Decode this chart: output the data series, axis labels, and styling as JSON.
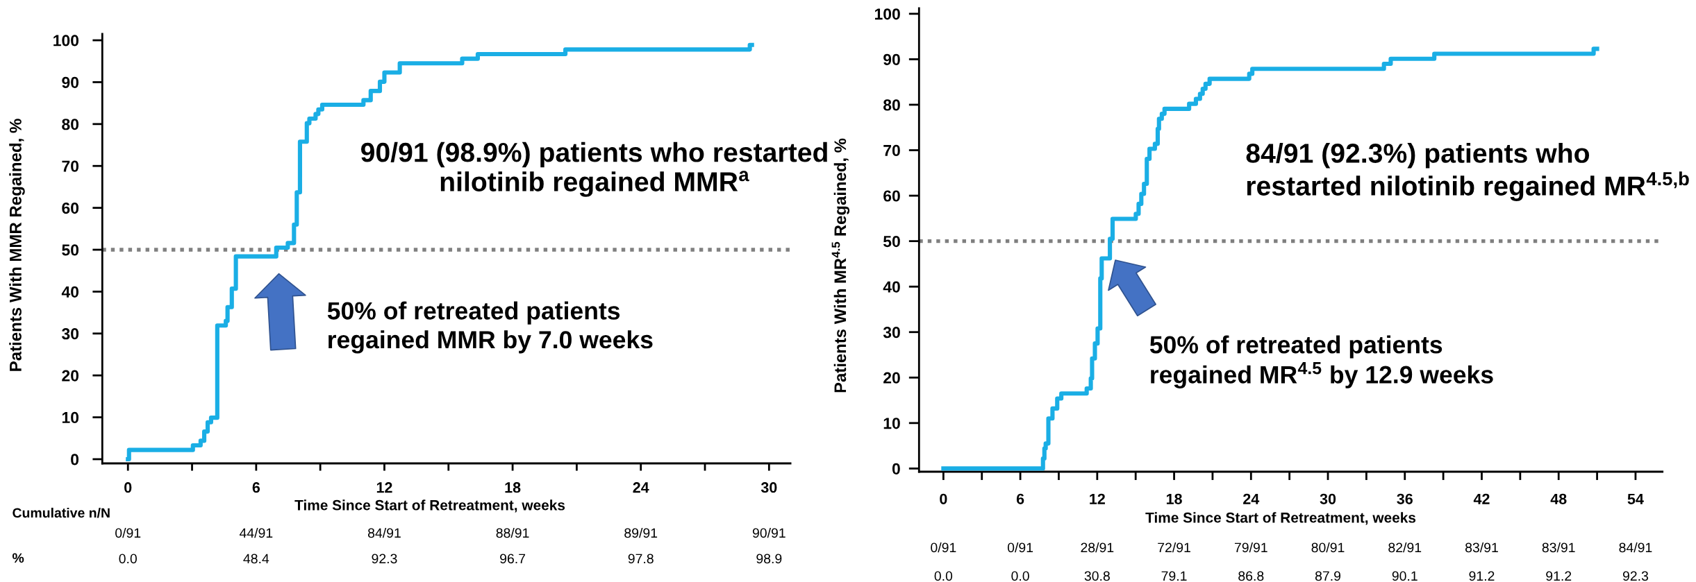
{
  "chart_data": [
    {
      "type": "step",
      "xlabel": "Time Since Start of Retreatment, weeks",
      "ylabel": "Patients With MMR Regained, %",
      "xlim": [
        -1.2,
        31.0
      ],
      "ylim": [
        -1,
        101.5
      ],
      "xticks": [
        0,
        {
          "value": 3,
          "label": null
        },
        6,
        {
          "value": 9,
          "label": null
        },
        12,
        {
          "value": 15,
          "label": null
        },
        18,
        {
          "value": 21,
          "label": null
        },
        24,
        {
          "value": 27,
          "label": null
        },
        30
      ],
      "yticks": [
        0,
        10,
        20,
        30,
        40,
        50,
        60,
        70,
        80,
        90,
        100
      ],
      "series": [
        {
          "color": "#1aaee5",
          "x": [
            0,
            0.05,
            3.04,
            3.4,
            3.57,
            3.73,
            3.89,
            4.18,
            4.58,
            4.66,
            4.86,
            5.05,
            6.94,
            7.48,
            7.77,
            7.9,
            8.05,
            8.37,
            8.49,
            8.78,
            8.91,
            9.09,
            11.02,
            11.36,
            11.79,
            12.0,
            12.72,
            15.64,
            16.37,
            20.47,
            29.1,
            29.2
          ],
          "values": [
            0,
            2.2,
            3.3,
            4.4,
            6.6,
            8.8,
            9.9,
            31.9,
            33.0,
            36.3,
            40.7,
            48.4,
            50.5,
            51.6,
            56.0,
            63.7,
            75.8,
            80.2,
            81.3,
            82.4,
            83.5,
            84.6,
            85.7,
            87.9,
            90.1,
            92.3,
            94.5,
            95.6,
            96.7,
            97.8,
            98.9,
            98.9
          ]
        }
      ],
      "ref_lines": [
        {
          "axis": "y",
          "value": 50,
          "color": "#808080",
          "line_style": "dotted"
        }
      ],
      "annotations": [
        "90/91 (98.9%) patients who restarted\nnilotinib regained MMR$^{a}$",
        {
          "text": "50% of retreated patients\nregained MMR by 7.0 weeks",
          "x": 7.0,
          "y": 50
        },
        "Cumulative n/N",
        "%",
        "0/91",
        "44/91",
        "84/91",
        "88/91",
        "89/91",
        "90/91",
        "0.0",
        "48.4",
        "92.3",
        "96.7",
        "97.8",
        "98.9"
      ]
    },
    {
      "type": "step",
      "xlabel": "Time Since Start of Retreatment, weeks",
      "ylabel": "Patients With MR$^{4.5}$ Regained, %",
      "xlim": [
        -1.9,
        56.1
      ],
      "ylim": [
        -0.7,
        101.2
      ],
      "xticks": [
        0,
        {
          "value": 3,
          "label": null
        },
        6,
        {
          "value": 9,
          "label": null
        },
        12,
        {
          "value": 15,
          "label": null
        },
        18,
        {
          "value": 21,
          "label": null
        },
        24,
        {
          "value": 27,
          "label": null
        },
        30,
        {
          "value": 33,
          "label": null
        },
        36,
        {
          "value": 39,
          "label": null
        },
        42,
        {
          "value": 45,
          "label": null
        },
        48,
        {
          "value": 51,
          "label": null
        },
        54
      ],
      "yticks": [
        0,
        10,
        20,
        30,
        40,
        50,
        60,
        70,
        80,
        90,
        100
      ],
      "series": [
        {
          "color": "#1aaee5",
          "x": [
            0,
            7.77,
            7.88,
            7.98,
            8.19,
            8.51,
            8.88,
            9.2,
            11.18,
            11.5,
            11.6,
            11.82,
            12.03,
            12.24,
            12.35,
            12.99,
            13.2,
            15.01,
            15.23,
            15.44,
            15.65,
            15.87,
            16.08,
            16.5,
            16.72,
            16.82,
            17.04,
            17.25,
            19.17,
            19.7,
            20.02,
            20.23,
            20.45,
            20.77,
            23.86,
            24.1,
            34.37,
            34.9,
            38.3,
            50.73,
            51.0
          ],
          "values": [
            0,
            2.2,
            4.4,
            5.5,
            11.0,
            13.2,
            15.4,
            16.5,
            17.6,
            19.8,
            24.2,
            27.5,
            30.8,
            41.8,
            46.2,
            50.5,
            54.9,
            56.0,
            58.2,
            60.4,
            62.6,
            68.1,
            70.3,
            71.4,
            74.7,
            76.9,
            78.0,
            79.1,
            80.2,
            81.3,
            82.4,
            83.5,
            84.6,
            85.7,
            86.8,
            87.9,
            89.0,
            90.1,
            91.2,
            92.3,
            92.3
          ]
        }
      ],
      "ref_lines": [
        {
          "axis": "y",
          "value": 50,
          "color": "#808080",
          "line_style": "dotted"
        }
      ],
      "annotations": [
        "84/91 (92.3%) patients who\nrestarted nilotinib regained MR$^{4.5,b}$",
        "50% of retreated patients\nregained MR$^{4.5}$ by 12.9 weeks",
        "0/91",
        "0/91",
        "28/91",
        "72/91",
        "79/91",
        "80/91",
        "82/91",
        "83/91",
        "83/91",
        "84/91",
        "0.0",
        "0.0",
        "30.8",
        "79.1",
        "86.8",
        "87.9",
        "90.1",
        "91.2",
        "91.2",
        "92.3"
      ]
    }
  ]
}
